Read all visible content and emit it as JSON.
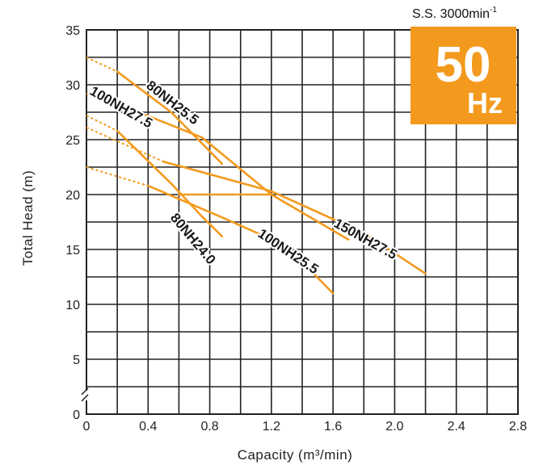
{
  "chart_data": {
    "type": "line",
    "title": "",
    "xlabel": "Capacity (m³/min)",
    "ylabel": "Total Head (m)",
    "xlim": [
      0,
      2.8
    ],
    "ylim": [
      0,
      35
    ],
    "x_ticks": [
      "0",
      "0.4",
      "0.8",
      "1.2",
      "1.6",
      "2.0",
      "2.4",
      "2.8"
    ],
    "y_ticks": [
      "0",
      "5",
      "10",
      "15",
      "20",
      "25",
      "30",
      "35"
    ],
    "grid": true,
    "speed_note": "S.S. 3000min",
    "speed_note_sup": "-1",
    "frequency": {
      "value": "50",
      "unit": "Hz",
      "color": "#F39A1E"
    },
    "line_color": "#F39A1E",
    "series": [
      {
        "name": "80NH25.5",
        "dashed": [
          [
            0,
            32.5
          ],
          [
            0.2,
            31.2
          ]
        ],
        "solid": [
          [
            0.2,
            31.2
          ],
          [
            0.55,
            27.5
          ],
          [
            0.88,
            22.8
          ]
        ]
      },
      {
        "name": "100NH27.5",
        "dashed": [
          [
            0,
            29.2
          ],
          [
            0.25,
            28.0
          ]
        ],
        "solid": [
          [
            0.25,
            28.0
          ],
          [
            0.75,
            25.2
          ],
          [
            1.2,
            20.0
          ],
          [
            1.7,
            15.9
          ]
        ]
      },
      {
        "name": "150NH27.5",
        "dashed": [
          [
            0,
            26.1
          ],
          [
            0.5,
            23.0
          ]
        ],
        "solid": [
          [
            0.5,
            23.0
          ],
          [
            1.2,
            20.3
          ],
          [
            1.8,
            16.5
          ],
          [
            2.2,
            12.8
          ]
        ]
      },
      {
        "name": "80NH24.0",
        "dashed": [
          [
            0,
            27.2
          ],
          [
            0.2,
            25.8
          ]
        ],
        "solid": [
          [
            0.2,
            25.8
          ],
          [
            0.55,
            21.0
          ],
          [
            0.75,
            18.0
          ],
          [
            0.88,
            16.2
          ]
        ]
      },
      {
        "name": "100NH25.5",
        "dashed": [
          [
            0,
            22.5
          ],
          [
            0.4,
            20.8
          ]
        ],
        "solid": [
          [
            0.4,
            20.8
          ],
          [
            0.9,
            17.8
          ],
          [
            1.3,
            15.3
          ],
          [
            1.6,
            11.0
          ]
        ]
      }
    ],
    "extra_lines": [
      {
        "solid": [
          [
            0.6,
            20.0
          ],
          [
            1.2,
            20.0
          ]
        ]
      }
    ]
  }
}
